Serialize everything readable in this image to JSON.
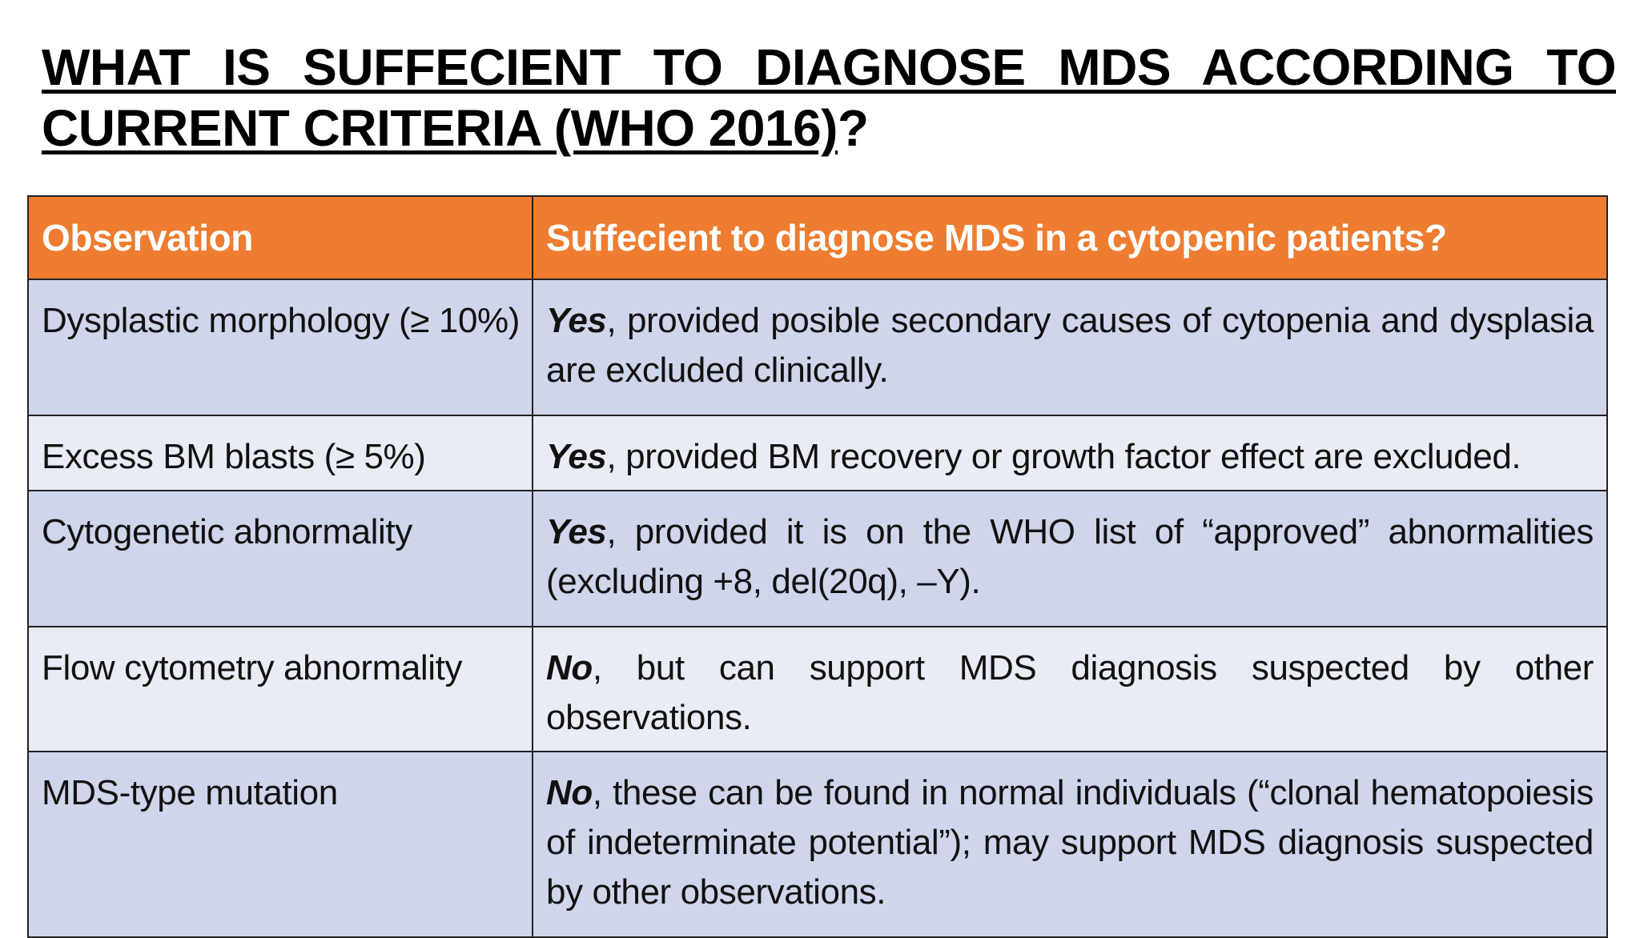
{
  "title": {
    "line1": "WHAT IS SUFFECIENT TO DIAGNOSE MDS ACCORDING TO",
    "line2_underlined": "CURRENT CRITERIA (WHO 2016)",
    "line2_tail": "?"
  },
  "table": {
    "headers": [
      "Observation",
      "Suffecient to diagnose MDS in a cytopenic patients?"
    ],
    "rows": [
      {
        "observation": "Dysplastic morphology (≥ 10%)",
        "answer": "Yes",
        "detail": ", provided posible secondary causes of cytopenia and dysplasia are excluded clinically."
      },
      {
        "observation": "Excess BM blasts (≥ 5%)",
        "answer": "Yes",
        "detail": ", provided BM recovery or growth factor effect are excluded."
      },
      {
        "observation": "Cytogenetic abnormality",
        "answer": "Yes",
        "detail": ", provided it is on the WHO list of “approved” abnormalities (excluding +8, del(20q), –Y)."
      },
      {
        "observation": "Flow cytometry abnormality",
        "answer": "No",
        "detail": ", but can support MDS diagnosis suspected by other observations."
      },
      {
        "observation": "MDS-type mutation",
        "answer": "No",
        "detail": ", these can be found in normal individuals (“clonal hematopoiesis of indeterminate potential”); may support MDS diagnosis suspected by other observations."
      }
    ]
  },
  "colors": {
    "header_bg": "#ee7d31",
    "header_text": "#ffffff",
    "row_dark": "#cfd5ea",
    "row_light": "#e9ebf5",
    "border": "#222222"
  }
}
